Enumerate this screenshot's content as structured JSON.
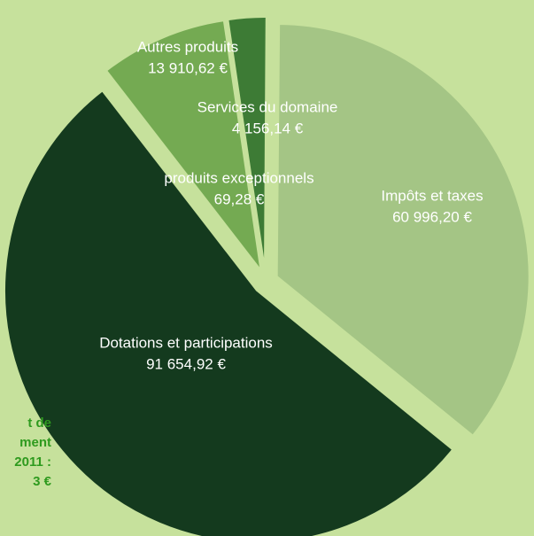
{
  "chart_data": {
    "type": "pie",
    "categories": [
      "Impôts et taxes",
      "Dotations et participations",
      "Autres produits",
      "Services du domaine",
      "produits exceptionnels"
    ],
    "values": [
      60996.2,
      91654.92,
      13910.62,
      4156.14,
      69.28
    ],
    "value_labels": [
      "60 996,20 €",
      "91 654,92 €",
      "13 910,62 €",
      "4 156,14 €",
      "69,28 €"
    ],
    "colors": [
      "#a4c585",
      "#143a1e",
      "#74aa52",
      "#3d7b35",
      "#8fbd6a"
    ],
    "annotations": [
      "t de",
      "ment",
      "2011 :",
      "3 €"
    ]
  }
}
